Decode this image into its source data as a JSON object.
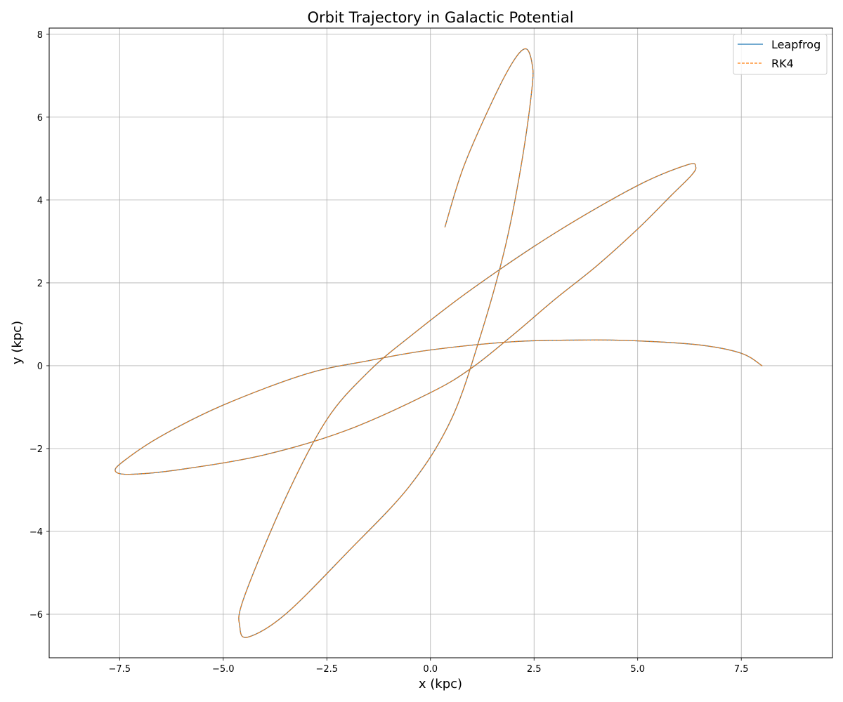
{
  "chart_data": {
    "type": "line",
    "title": "Orbit Trajectory in Galactic Potential",
    "xlabel": "x (kpc)",
    "ylabel": "y (kpc)",
    "xlim": [
      -9.2,
      9.7
    ],
    "ylim": [
      -7.05,
      8.15
    ],
    "xticks": [
      -7.5,
      -5.0,
      -2.5,
      0.0,
      2.5,
      5.0,
      7.5
    ],
    "xtick_labels": [
      "−7.5",
      "−5.0",
      "−2.5",
      "0.0",
      "2.5",
      "5.0",
      "7.5"
    ],
    "yticks": [
      -6,
      -4,
      -2,
      0,
      2,
      4,
      6,
      8
    ],
    "ytick_labels": [
      "−6",
      "−4",
      "−2",
      "0",
      "2",
      "4",
      "6",
      "8"
    ],
    "grid": true,
    "legend_position": "top-right",
    "series": [
      {
        "name": "Leapfrog",
        "color": "#1f77b4",
        "style": "solid",
        "x": [
          8.0,
          7.5,
          6.5,
          5.0,
          3.8,
          2.0,
          0.0,
          -1.5,
          -3.0,
          -5.0,
          -6.5,
          -7.4,
          -7.6,
          -7.2,
          -6.0,
          -4.0,
          -2.0,
          0.0,
          1.0,
          2.0,
          3.0,
          4.0,
          5.0,
          5.8,
          6.3,
          6.4,
          6.2,
          5.0,
          3.0,
          1.0,
          -0.5,
          -1.5,
          -2.5,
          -3.5,
          -4.5,
          -4.6,
          -4.4,
          -3.5,
          -2.0,
          -0.5,
          0.5,
          1.2,
          1.8,
          2.2,
          2.45,
          2.45,
          2.3,
          2.0,
          1.5,
          0.8,
          0.35
        ],
        "y": [
          0.0,
          0.3,
          0.5,
          0.6,
          0.62,
          0.58,
          0.38,
          0.12,
          -0.2,
          -0.95,
          -1.7,
          -2.3,
          -2.55,
          -2.62,
          -2.5,
          -2.15,
          -1.55,
          -0.65,
          -0.05,
          0.75,
          1.6,
          2.4,
          3.3,
          4.1,
          4.6,
          4.8,
          4.85,
          4.35,
          3.2,
          1.85,
          0.7,
          -0.15,
          -1.3,
          -3.2,
          -5.6,
          -6.3,
          -6.55,
          -6.0,
          -4.5,
          -2.9,
          -1.3,
          0.7,
          2.85,
          4.9,
          6.7,
          7.3,
          7.65,
          7.35,
          6.4,
          4.8,
          3.35
        ]
      },
      {
        "name": "RK4",
        "color": "#ff7f0e",
        "style": "dashed",
        "x": [
          8.0,
          7.5,
          6.5,
          5.0,
          3.8,
          2.0,
          0.0,
          -1.5,
          -3.0,
          -5.0,
          -6.5,
          -7.4,
          -7.6,
          -7.2,
          -6.0,
          -4.0,
          -2.0,
          0.0,
          1.0,
          2.0,
          3.0,
          4.0,
          5.0,
          5.8,
          6.3,
          6.4,
          6.2,
          5.0,
          3.0,
          1.0,
          -0.5,
          -1.5,
          -2.5,
          -3.5,
          -4.5,
          -4.6,
          -4.4,
          -3.5,
          -2.0,
          -0.5,
          0.5,
          1.2,
          1.8,
          2.2,
          2.45,
          2.45,
          2.3,
          2.0,
          1.5,
          0.8,
          0.35
        ],
        "y": [
          0.0,
          0.3,
          0.5,
          0.6,
          0.62,
          0.58,
          0.38,
          0.12,
          -0.2,
          -0.95,
          -1.7,
          -2.3,
          -2.55,
          -2.62,
          -2.5,
          -2.15,
          -1.55,
          -0.65,
          -0.05,
          0.75,
          1.6,
          2.4,
          3.3,
          4.1,
          4.6,
          4.8,
          4.85,
          4.35,
          3.2,
          1.85,
          0.7,
          -0.15,
          -1.3,
          -3.2,
          -5.6,
          -6.3,
          -6.55,
          -6.0,
          -4.5,
          -2.9,
          -1.3,
          0.7,
          2.85,
          4.9,
          6.7,
          7.3,
          7.65,
          7.35,
          6.4,
          4.8,
          3.35
        ]
      }
    ]
  }
}
